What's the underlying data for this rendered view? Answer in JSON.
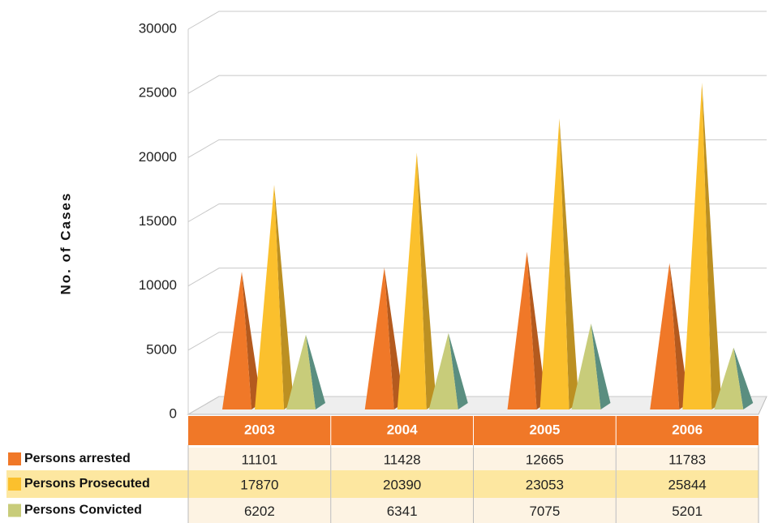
{
  "chart_data": {
    "type": "pyramid",
    "y_label": "No. of Cases",
    "categories": [
      "2003",
      "2004",
      "2005",
      "2006"
    ],
    "series": [
      {
        "name": "Persons arrested",
        "color": "#f07828",
        "values": [
          11101,
          11428,
          12665,
          11783
        ]
      },
      {
        "name": "Persons Prosecuted",
        "color": "#fbc02d",
        "values": [
          17870,
          20390,
          23053,
          25844
        ]
      },
      {
        "name": "Persons Convicted",
        "color": "#c8cc7a",
        "values": [
          6202,
          6341,
          7075,
          5201
        ]
      }
    ],
    "ylim": [
      0,
      30000
    ],
    "yticks": [
      0,
      5000,
      10000,
      15000,
      20000,
      25000,
      30000
    ],
    "grid": true
  }
}
